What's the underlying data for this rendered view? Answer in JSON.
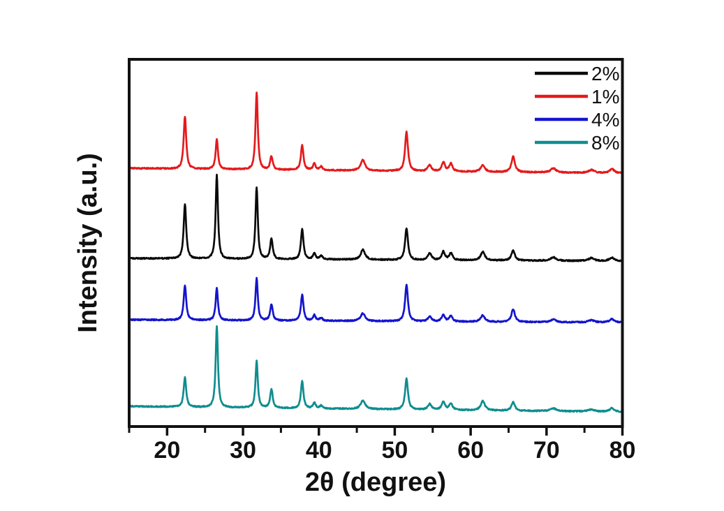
{
  "axes": {
    "xlabel": "2θ (degree)",
    "ylabel": "Intensity (a.u.)",
    "x_tick_labels": [
      "20",
      "30",
      "40",
      "50",
      "60",
      "70",
      "80"
    ]
  },
  "legend": {
    "position": "top-right-inside",
    "entries": [
      {
        "label": "2%",
        "color": "#0a0a0a"
      },
      {
        "label": "1%",
        "color": "#e41a1c"
      },
      {
        "label": "4%",
        "color": "#1414cd"
      },
      {
        "label": "8%",
        "color": "#0f8d8f"
      }
    ]
  },
  "chart_data": {
    "type": "line",
    "variant": "XRD powder diffraction patterns, four traces stacked with vertical offsets",
    "title": "",
    "xlabel": "2θ (degree)",
    "ylabel": "Intensity (a.u.)",
    "xlim": [
      15,
      80
    ],
    "x_ticks_major": [
      20,
      30,
      40,
      50,
      60,
      70,
      80
    ],
    "x_ticks_minor": [
      15,
      25,
      35,
      45,
      55,
      65,
      75
    ],
    "y_axis": "arbitrary units, no tick marks or labels",
    "grid": false,
    "legend_position": "top-right-inside",
    "frame": "full box, thick black border",
    "peak_two_theta": [
      22.35,
      26.55,
      31.8,
      33.75,
      37.8,
      39.4,
      40.3,
      45.8,
      51.55,
      54.6,
      56.4,
      57.4,
      61.6,
      65.6,
      70.9,
      75.9,
      78.6
    ],
    "peak_hwhm_deg": [
      0.22,
      0.2,
      0.2,
      0.22,
      0.22,
      0.22,
      0.25,
      0.38,
      0.25,
      0.3,
      0.28,
      0.28,
      0.36,
      0.3,
      0.45,
      0.5,
      0.4
    ],
    "intensity_units": "arbitrary (peak heights above each trace baseline)",
    "series": [
      {
        "name": "1%",
        "color": "#e41a1c",
        "stack_row": 1,
        "peak_intensities": [
          75,
          43,
          110,
          19,
          36,
          9,
          5,
          15,
          56,
          9,
          13,
          11,
          9,
          22,
          6,
          4,
          6
        ]
      },
      {
        "name": "2%",
        "color": "#0a0a0a",
        "stack_row": 2,
        "peak_intensities": [
          78,
          120,
          103,
          29,
          43,
          9,
          5,
          14,
          45,
          10,
          12,
          10,
          12,
          14,
          5,
          4,
          5
        ]
      },
      {
        "name": "4%",
        "color": "#1414cd",
        "stack_row": 3,
        "peak_intensities": [
          50,
          46,
          60,
          23,
          37,
          8,
          4,
          11,
          52,
          7,
          9,
          8,
          9,
          18,
          4,
          3,
          5
        ]
      },
      {
        "name": "8%",
        "color": "#0f8d8f",
        "stack_row": 4,
        "peak_intensities": [
          42,
          116,
          67,
          27,
          39,
          8,
          4,
          12,
          44,
          8,
          12,
          9,
          13,
          12,
          4,
          3,
          5
        ]
      }
    ],
    "axis_color": "#111111"
  }
}
